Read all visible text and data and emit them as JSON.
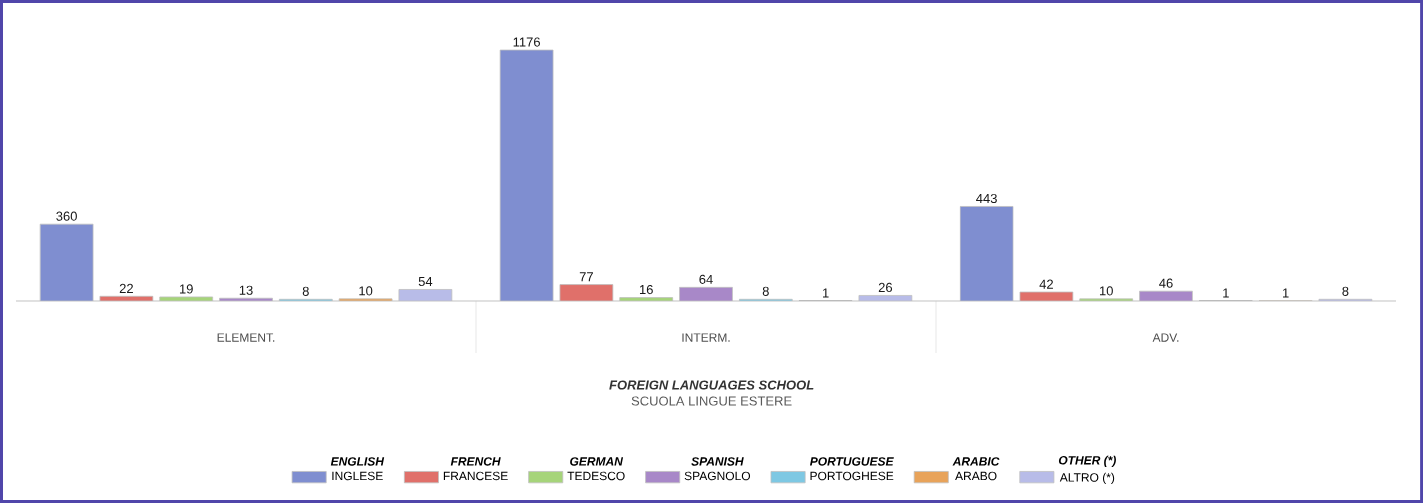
{
  "chart_data": {
    "type": "bar",
    "title": "FOREIGN LANGUAGES SCHOOL",
    "subtitle": "SCUOLA LINGUE ESTERE",
    "categories": [
      "ELEMENT.",
      "INTERM.",
      "ADV."
    ],
    "series": [
      {
        "name": "INGLESE",
        "color": "#7f8ed0",
        "values": [
          360,
          1176,
          443
        ]
      },
      {
        "name": "FRANCESE",
        "color": "#e0706a",
        "values": [
          22,
          77,
          42
        ]
      },
      {
        "name": "TEDESCO",
        "color": "#a6d47a",
        "values": [
          19,
          16,
          10
        ]
      },
      {
        "name": "SPAGNOLO",
        "color": "#a888c8",
        "values": [
          13,
          64,
          46
        ]
      },
      {
        "name": "PORTOGHESE",
        "color": "#7ec8e3",
        "colors": [
          "#7ec8e3",
          "#7ec8e3",
          "#111111"
        ],
        "values": [
          8,
          8,
          1
        ]
      },
      {
        "name": "ARABO",
        "color": "#e8a35a",
        "colors": [
          "#e8a35a",
          "#111111",
          "#e8a35a"
        ],
        "values": [
          10,
          1,
          1
        ]
      },
      {
        "name": "ALTRO (*)",
        "color": "#b8bce8",
        "values": [
          54,
          26,
          8
        ]
      }
    ],
    "annotations": [
      "ENGLISH",
      "FRENCH",
      "GERMAN",
      "SPANISH",
      "PORTUGUESE",
      "ARABIC",
      "OTHER (*)"
    ],
    "legend": "bottom",
    "data_labels": true,
    "tick_labels": "x"
  }
}
